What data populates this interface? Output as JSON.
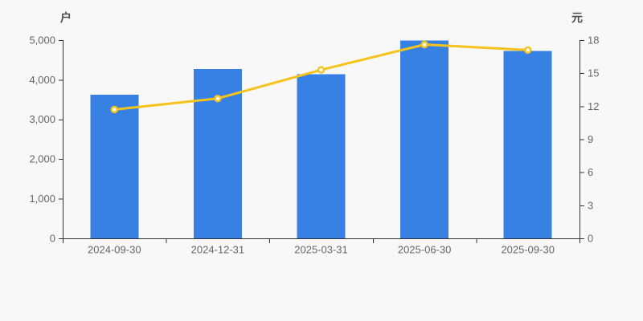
{
  "chart_data": {
    "type": "bar+line",
    "categories": [
      "2024-09-30",
      "2024-12-31",
      "2025-03-31",
      "2025-06-30",
      "2025-09-30"
    ],
    "series": [
      {
        "name": "户",
        "type": "bar",
        "axis": "left",
        "values": [
          3620,
          4270,
          4140,
          4990,
          4730
        ],
        "color": "#3780e4"
      },
      {
        "name": "元",
        "type": "line",
        "axis": "right",
        "values": [
          11.7,
          12.7,
          15.3,
          17.6,
          17.1
        ],
        "color": "#f6c31c",
        "marker_fill": "#ffffff"
      }
    ],
    "left_axis": {
      "name": "户",
      "min": 0,
      "max": 5000,
      "step": 1000,
      "tick_labels": [
        "0",
        "1,000",
        "2,000",
        "3,000",
        "4,000",
        "5,000"
      ]
    },
    "right_axis": {
      "name": "元",
      "min": 0,
      "max": 18,
      "step": 3,
      "tick_labels": [
        "0",
        "3",
        "6",
        "9",
        "12",
        "15",
        "18"
      ]
    },
    "grid": false,
    "legend": false,
    "colors": {
      "background": "#f8f8f8",
      "axis_line": "#333333",
      "tick_label": "#666666"
    }
  }
}
